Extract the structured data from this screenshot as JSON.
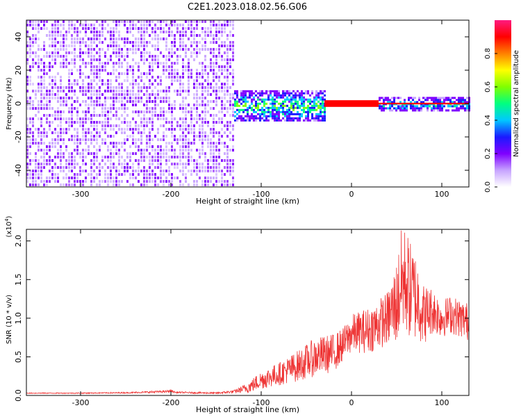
{
  "figure": {
    "title": "C2E1.2023.018.02.56.G06"
  },
  "chart_data": [
    {
      "type": "heatmap",
      "xlabel": "Height of straight line (km)",
      "ylabel": "Frequency (Hz)",
      "xlim": [
        -360,
        130
      ],
      "ylim": [
        -50,
        50
      ],
      "x_ticks": [
        -300,
        -200,
        -100,
        0,
        100
      ],
      "y_ticks": [
        -40,
        -20,
        0,
        20,
        40
      ],
      "colorbar": {
        "label": "Normalized spectral amplitude",
        "range": [
          0,
          1
        ],
        "ticks": [
          "0.0",
          "0.2",
          "0.4",
          "0.6",
          "0.8"
        ],
        "tick_values": [
          0.0,
          0.2,
          0.4,
          0.6,
          0.8
        ],
        "colors": [
          "#ffffff",
          "#c7a3ff",
          "#7f00ff",
          "#1a1aff",
          "#00c8ff",
          "#00ff80",
          "#80ff00",
          "#ffff00",
          "#ff8000",
          "#ff0000",
          "#ff1a80"
        ]
      },
      "regions": [
        {
          "x_range": [
            -360,
            -130
          ],
          "y_range": [
            -50,
            50
          ],
          "amplitude": 0.15,
          "pattern": "noise"
        },
        {
          "x_range": [
            -130,
            -30
          ],
          "y_range": [
            -10,
            8
          ],
          "amplitude": 0.35,
          "pattern": "band"
        },
        {
          "x_range": [
            -30,
            30
          ],
          "y_range": [
            -2,
            2
          ],
          "amplitude": 0.9,
          "pattern": "line"
        },
        {
          "x_range": [
            30,
            130
          ],
          "y_range": [
            -4,
            4
          ],
          "amplitude": 0.3,
          "pattern": "band"
        },
        {
          "x_range": [
            30,
            130
          ],
          "y_range": [
            -0.5,
            0.5
          ],
          "amplitude": 0.9,
          "pattern": "line"
        }
      ]
    },
    {
      "type": "line",
      "xlabel": "Height of straight line (km)",
      "ylabel": "SNR (10 * v/v)",
      "y_multiplier": "(x10",
      "y_multiplier_exp": "4",
      "y_multiplier_close": ")",
      "xlim": [
        -360,
        130
      ],
      "ylim": [
        0,
        2.15
      ],
      "x_ticks": [
        -300,
        -200,
        -100,
        0,
        100
      ],
      "y_ticks": [
        "0.0",
        "0.5",
        "1.0",
        "1.5",
        "2.0"
      ],
      "y_tick_values": [
        0.0,
        0.5,
        1.0,
        1.5,
        2.0
      ],
      "series": [
        {
          "color": "#ee3333",
          "x": [
            -360,
            -300,
            -250,
            -205,
            -200,
            -195,
            -150,
            -130,
            -115,
            -100,
            -80,
            -60,
            -40,
            -20,
            -10,
            0,
            20,
            40,
            50,
            55,
            60,
            65,
            70,
            75,
            80,
            90,
            100,
            110,
            120,
            130
          ],
          "y": [
            0.03,
            0.03,
            0.035,
            0.05,
            0.06,
            0.04,
            0.03,
            0.05,
            0.1,
            0.2,
            0.28,
            0.38,
            0.5,
            0.55,
            0.65,
            0.8,
            0.85,
            1.0,
            1.2,
            1.45,
            1.5,
            1.35,
            1.3,
            1.2,
            1.05,
            1.1,
            1.0,
            1.05,
            1.0,
            0.95
          ],
          "spread": [
            0.005,
            0.006,
            0.008,
            0.015,
            0.02,
            0.01,
            0.01,
            0.02,
            0.07,
            0.12,
            0.15,
            0.2,
            0.25,
            0.25,
            0.22,
            0.25,
            0.3,
            0.35,
            0.55,
            0.7,
            0.7,
            0.65,
            0.6,
            0.5,
            0.4,
            0.3,
            0.25,
            0.25,
            0.25,
            0.25
          ]
        }
      ]
    }
  ]
}
